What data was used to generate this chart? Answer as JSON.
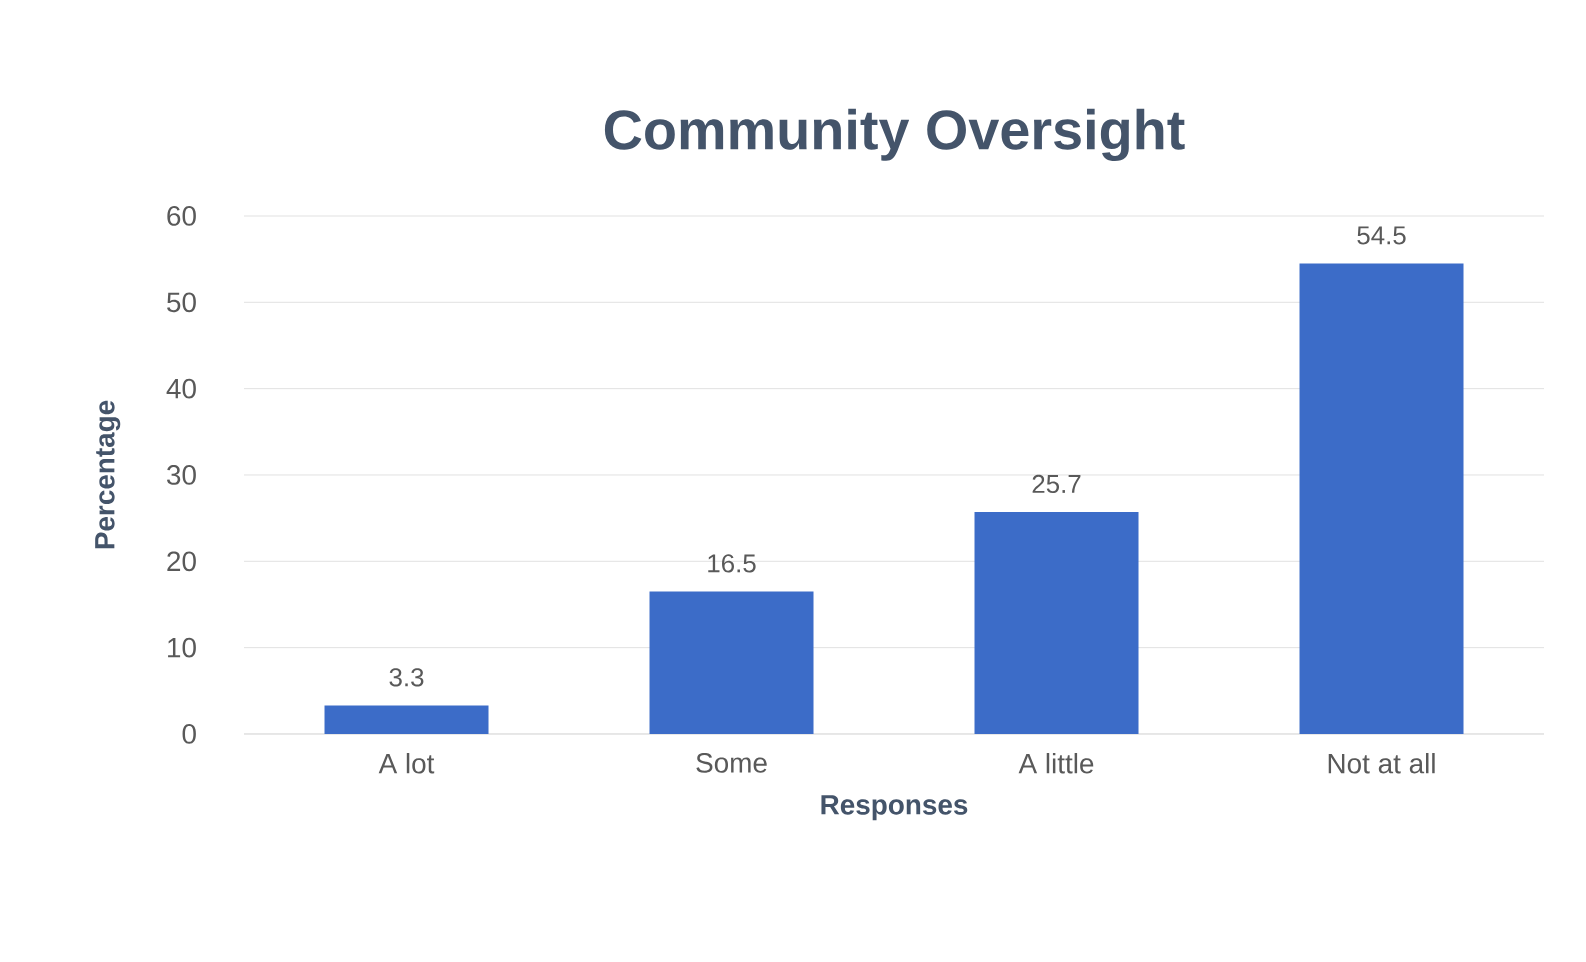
{
  "chart_data": {
    "type": "bar",
    "title": "Community Oversight",
    "xlabel": "Responses",
    "ylabel": "Percentage",
    "categories": [
      "A lot",
      "Some",
      "A little",
      "Not at all"
    ],
    "values": [
      3.3,
      16.5,
      25.7,
      54.5
    ],
    "color": "#3c6cc8",
    "ylim": [
      0,
      60
    ],
    "yticks": [
      0,
      10,
      20,
      30,
      40,
      50,
      60
    ],
    "grid": "y",
    "data_labels": true
  }
}
